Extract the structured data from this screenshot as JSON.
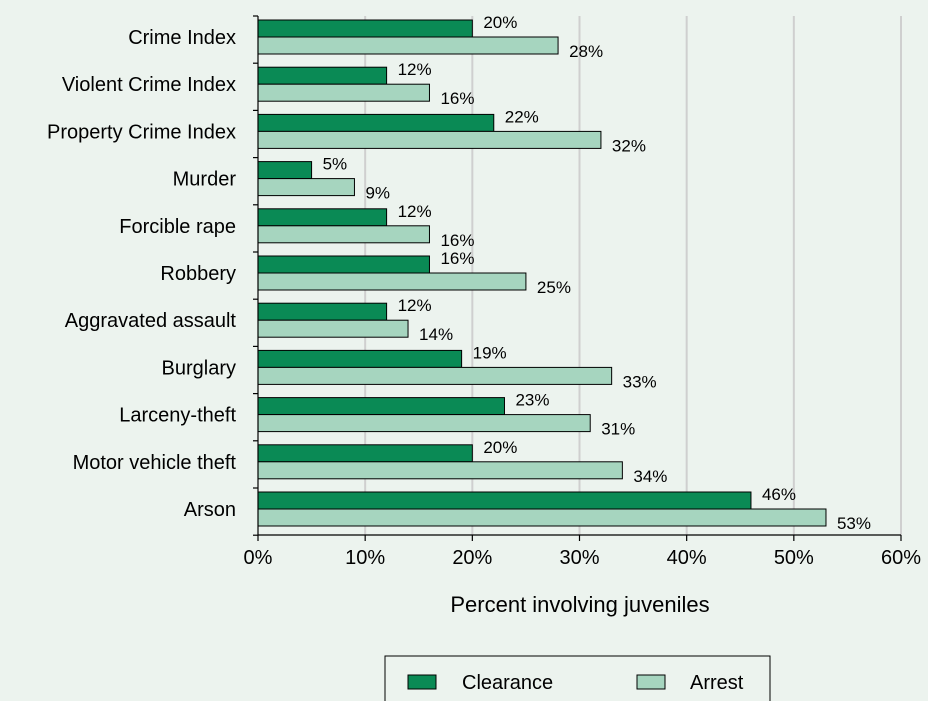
{
  "chart_data": {
    "type": "bar",
    "orientation": "horizontal",
    "categories": [
      "Crime Index",
      "Violent Crime Index",
      "Property Crime Index",
      "Murder",
      "Forcible rape",
      "Robbery",
      "Aggravated assault",
      "Burglary",
      "Larceny-theft",
      "Motor vehicle theft",
      "Arson"
    ],
    "series": [
      {
        "name": "Clearance",
        "values": [
          20,
          12,
          22,
          5,
          12,
          16,
          12,
          19,
          23,
          20,
          46
        ],
        "color": "#0a8a55"
      },
      {
        "name": "Arrest",
        "values": [
          28,
          16,
          32,
          9,
          16,
          25,
          14,
          33,
          31,
          34,
          53
        ],
        "color": "#a6d5bf"
      }
    ],
    "xlabel": "Percent involving juveniles",
    "ylabel": "",
    "xlim": [
      0,
      60
    ],
    "ticks": [
      "0%",
      "10%",
      "20%",
      "30%",
      "40%",
      "50%",
      "60%"
    ],
    "value_suffix": "%",
    "grid": "vertical",
    "legend": "bottom-center",
    "background": "#ecf3ee",
    "gridline_color": "#cfcfcf"
  }
}
